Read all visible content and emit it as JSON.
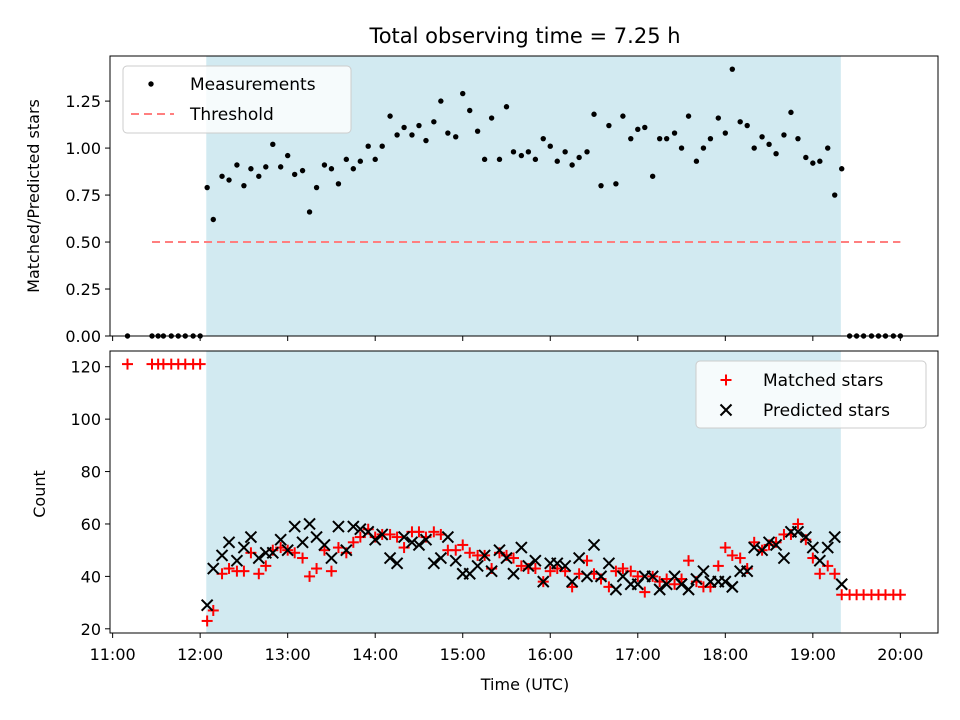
{
  "figure": {
    "title": "Total observing time = 7.25 h"
  },
  "colors": {
    "observing_window": "#add8e6",
    "measurements": "#000000",
    "threshold": "#ff7f7f",
    "matched": "#ff0000",
    "predicted": "#000000"
  },
  "chart_data": [
    {
      "type": "scatter",
      "panel": "top",
      "title": "Total observing time = 7.25 h",
      "xlabel": "",
      "ylabel": "Matched/Predicted stars",
      "xlim": [
        10.97,
        20.43
      ],
      "ylim": [
        0,
        1.49
      ],
      "yticks": [
        0.0,
        0.25,
        0.5,
        0.75,
        1.0,
        1.25
      ],
      "ytick_labels": [
        "0.00",
        "0.25",
        "0.50",
        "0.75",
        "1.00",
        "1.25"
      ],
      "xticks": [
        11,
        12,
        13,
        14,
        15,
        16,
        17,
        18,
        19,
        20
      ],
      "shaded_span": [
        12.07,
        19.32
      ],
      "legend_position": "upper left",
      "legend": [
        "Measurements",
        "Threshold"
      ],
      "threshold": {
        "name": "Threshold",
        "y": 0.5,
        "x": [
          11.45,
          20.0
        ]
      },
      "measurements": {
        "name": "Measurements",
        "x": [
          11.17,
          11.45,
          11.52,
          11.58,
          11.67,
          11.75,
          11.83,
          11.92,
          12.0,
          12.08,
          12.15,
          12.25,
          12.33,
          12.42,
          12.5,
          12.58,
          12.67,
          12.75,
          12.83,
          12.92,
          13.0,
          13.08,
          13.17,
          13.25,
          13.33,
          13.42,
          13.5,
          13.58,
          13.67,
          13.75,
          13.83,
          13.92,
          14.0,
          14.08,
          14.17,
          14.25,
          14.33,
          14.42,
          14.5,
          14.58,
          14.67,
          14.75,
          14.83,
          14.92,
          15.0,
          15.08,
          15.17,
          15.25,
          15.33,
          15.42,
          15.5,
          15.58,
          15.67,
          15.75,
          15.83,
          15.92,
          16.0,
          16.08,
          16.17,
          16.25,
          16.33,
          16.42,
          16.5,
          16.58,
          16.67,
          16.75,
          16.83,
          16.92,
          17.0,
          17.08,
          17.17,
          17.25,
          17.33,
          17.42,
          17.5,
          17.58,
          17.67,
          17.75,
          17.83,
          17.92,
          18.0,
          18.08,
          18.17,
          18.25,
          18.33,
          18.42,
          18.5,
          18.58,
          18.67,
          18.75,
          18.83,
          18.92,
          19.0,
          19.08,
          19.17,
          19.25,
          19.33,
          19.42,
          19.5,
          19.58,
          19.67,
          19.75,
          19.83,
          19.92,
          20.0
        ],
        "y": [
          0,
          0,
          0,
          0,
          0,
          0,
          0,
          0,
          0,
          0.79,
          0.62,
          0.85,
          0.83,
          0.91,
          0.8,
          0.89,
          0.85,
          0.9,
          1.02,
          0.9,
          0.96,
          0.86,
          0.88,
          0.66,
          0.79,
          0.91,
          0.89,
          0.81,
          0.94,
          0.89,
          0.93,
          1.01,
          0.94,
          1.01,
          1.17,
          1.07,
          1.11,
          1.07,
          1.12,
          1.04,
          1.14,
          1.25,
          1.08,
          1.06,
          1.29,
          1.2,
          1.09,
          0.94,
          1.16,
          0.94,
          1.22,
          0.98,
          0.96,
          0.98,
          0.94,
          1.05,
          1.01,
          0.93,
          0.98,
          0.91,
          0.95,
          0.98,
          1.18,
          0.8,
          1.12,
          0.81,
          1.17,
          1.05,
          1.1,
          1.11,
          0.85,
          1.05,
          1.05,
          1.08,
          1.0,
          1.17,
          0.93,
          1.0,
          1.05,
          1.16,
          1.08,
          1.42,
          1.14,
          1.12,
          1.0,
          1.06,
          1.02,
          0.97,
          1.07,
          1.19,
          1.05,
          0.95,
          0.92,
          0.93,
          1.0,
          0.75,
          0.89,
          0,
          0,
          0,
          0,
          0,
          0,
          0,
          0
        ]
      }
    },
    {
      "type": "scatter",
      "panel": "bottom",
      "xlabel": "Time (UTC)",
      "ylabel": "Count",
      "xlim": [
        10.97,
        20.43
      ],
      "ylim": [
        18.4,
        126
      ],
      "yticks": [
        20,
        40,
        60,
        80,
        100,
        120
      ],
      "xticks": [
        11,
        12,
        13,
        14,
        15,
        16,
        17,
        18,
        19,
        20
      ],
      "xtick_labels": [
        "11:00",
        "12:00",
        "13:00",
        "14:00",
        "15:00",
        "16:00",
        "17:00",
        "18:00",
        "19:00",
        "20:00"
      ],
      "shaded_span": [
        12.07,
        19.32
      ],
      "legend_position": "upper right",
      "legend": [
        "Matched stars",
        "Predicted stars"
      ],
      "series": [
        {
          "name": "Matched stars",
          "marker": "+",
          "x": [
            11.17,
            11.45,
            11.52,
            11.58,
            11.67,
            11.75,
            11.83,
            11.92,
            12.0,
            12.08,
            12.15,
            12.25,
            12.33,
            12.42,
            12.5,
            12.58,
            12.67,
            12.75,
            12.83,
            12.92,
            13.0,
            13.08,
            13.17,
            13.25,
            13.33,
            13.42,
            13.5,
            13.58,
            13.67,
            13.75,
            13.83,
            13.92,
            14.0,
            14.08,
            14.17,
            14.25,
            14.33,
            14.42,
            14.5,
            14.58,
            14.67,
            14.75,
            14.83,
            14.92,
            15.0,
            15.08,
            15.17,
            15.25,
            15.33,
            15.42,
            15.5,
            15.58,
            15.67,
            15.75,
            15.83,
            15.92,
            16.0,
            16.08,
            16.17,
            16.25,
            16.33,
            16.42,
            16.5,
            16.58,
            16.67,
            16.75,
            16.83,
            16.92,
            17.0,
            17.08,
            17.17,
            17.25,
            17.33,
            17.42,
            17.5,
            17.58,
            17.67,
            17.75,
            17.83,
            17.92,
            18.0,
            18.08,
            18.17,
            18.25,
            18.33,
            18.42,
            18.5,
            18.58,
            18.67,
            18.75,
            18.83,
            18.92,
            19.0,
            19.08,
            19.17,
            19.25,
            19.33,
            19.42,
            19.5,
            19.58,
            19.67,
            19.75,
            19.83,
            19.92,
            20.0
          ],
          "y": [
            121,
            121,
            121,
            121,
            121,
            121,
            121,
            121,
            121,
            23,
            27,
            41,
            43,
            42,
            42,
            49,
            41,
            44,
            50,
            51,
            50,
            49,
            47,
            40,
            43,
            50,
            42,
            51,
            49,
            53,
            55,
            58,
            55,
            56,
            56,
            55,
            51,
            57,
            57,
            55,
            57,
            56,
            50,
            50,
            52,
            49,
            48,
            48,
            43,
            49,
            48,
            47,
            44,
            43,
            43,
            38,
            42,
            43,
            42,
            36,
            41,
            46,
            41,
            39,
            36,
            42,
            43,
            42,
            40,
            34,
            40,
            38,
            39,
            37,
            39,
            46,
            38,
            36,
            36,
            44,
            51,
            48,
            47,
            43,
            53,
            50,
            52,
            53,
            56,
            56,
            60,
            54,
            47,
            41,
            44,
            41,
            33,
            33,
            33,
            33,
            33,
            33,
            33,
            33,
            33
          ]
        },
        {
          "name": "Predicted stars",
          "marker": "x",
          "x": [
            12.08,
            12.15,
            12.25,
            12.33,
            12.42,
            12.5,
            12.58,
            12.67,
            12.75,
            12.83,
            12.92,
            13.0,
            13.08,
            13.17,
            13.25,
            13.33,
            13.42,
            13.5,
            13.58,
            13.67,
            13.75,
            13.83,
            13.92,
            14.0,
            14.08,
            14.17,
            14.25,
            14.33,
            14.42,
            14.5,
            14.58,
            14.67,
            14.75,
            14.83,
            14.92,
            15.0,
            15.08,
            15.17,
            15.25,
            15.33,
            15.42,
            15.5,
            15.58,
            15.67,
            15.75,
            15.83,
            15.92,
            16.0,
            16.08,
            16.17,
            16.25,
            16.33,
            16.42,
            16.5,
            16.58,
            16.67,
            16.75,
            16.83,
            16.92,
            17.0,
            17.08,
            17.17,
            17.25,
            17.33,
            17.42,
            17.5,
            17.58,
            17.67,
            17.75,
            17.83,
            17.92,
            18.0,
            18.08,
            18.17,
            18.25,
            18.33,
            18.42,
            18.5,
            18.58,
            18.67,
            18.75,
            18.83,
            18.92,
            19.0,
            19.08,
            19.17,
            19.25,
            19.33
          ],
          "y": [
            29,
            43,
            48,
            53,
            46,
            51,
            55,
            47,
            49,
            49,
            54,
            50,
            59,
            53,
            60,
            55,
            52,
            47,
            59,
            50,
            59,
            58,
            57,
            54,
            56,
            47,
            45,
            55,
            53,
            52,
            54,
            45,
            47,
            55,
            46,
            41,
            41,
            44,
            48,
            42,
            50,
            47,
            41,
            51,
            44,
            46,
            38,
            45,
            45,
            44,
            38,
            47,
            40,
            52,
            40,
            45,
            35,
            40,
            37,
            37,
            40,
            40,
            35,
            37,
            40,
            37,
            35,
            39,
            42,
            38,
            38,
            38,
            36,
            42,
            42,
            51,
            50,
            53,
            52,
            47,
            57,
            57,
            55,
            51,
            46,
            51,
            55,
            37
          ]
        }
      ]
    }
  ]
}
